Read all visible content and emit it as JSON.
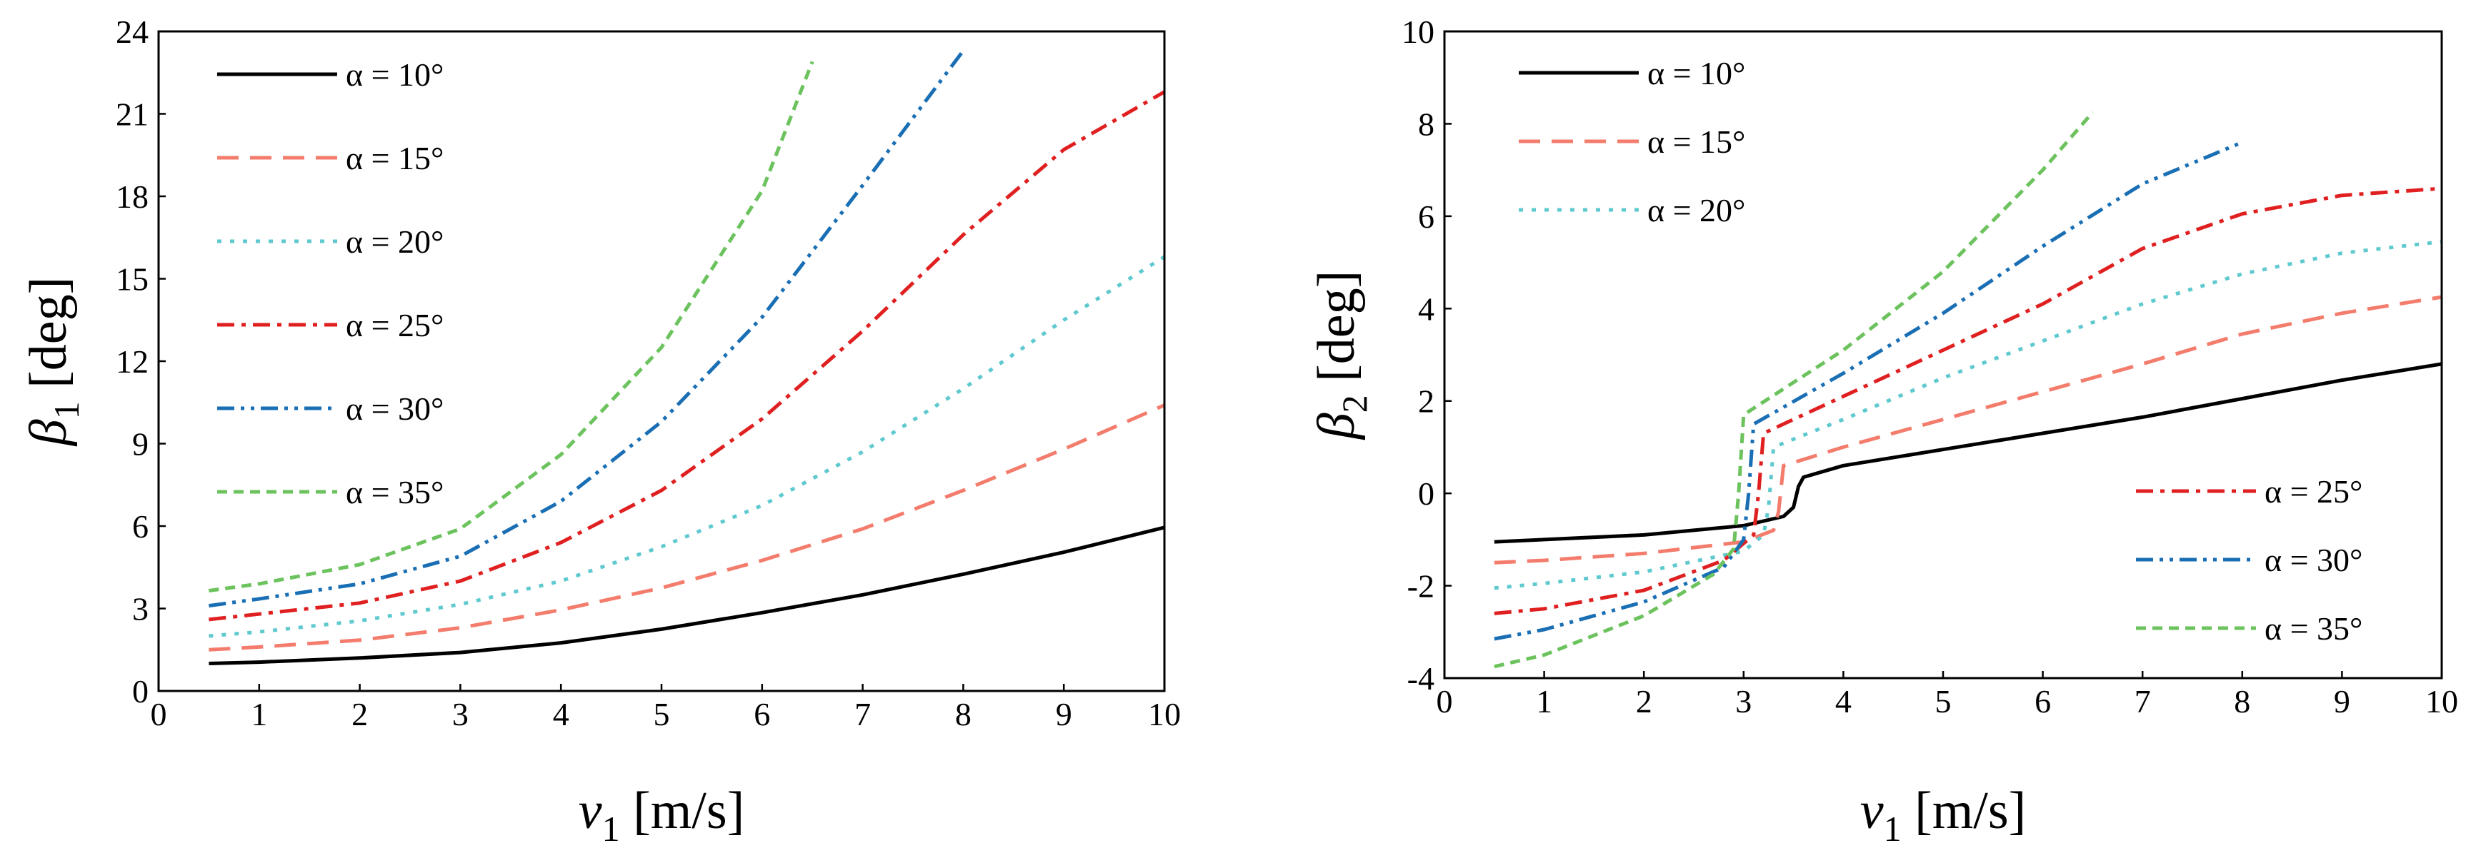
{
  "chart_data": [
    {
      "type": "line",
      "id": "left",
      "xlabel_var": "v",
      "xlabel_sub": "1",
      "xlabel_unit": " [m/s]",
      "ylabel_var": "β",
      "ylabel_sub": "1",
      "ylabel_unit": " [deg]",
      "xlim": [
        0,
        10
      ],
      "ylim": [
        0,
        24
      ],
      "xticks": [
        0,
        1,
        2,
        3,
        4,
        5,
        6,
        7,
        8,
        9,
        10
      ],
      "yticks": [
        0,
        3,
        6,
        9,
        12,
        15,
        18,
        21,
        24
      ],
      "legend_position": "top-left",
      "series": [
        {
          "name": "α = 10°",
          "color": "#000000",
          "style": "solid",
          "x": [
            0.5,
            1,
            2,
            3,
            4,
            5,
            6,
            7,
            8,
            9,
            10
          ],
          "y": [
            1.0,
            1.05,
            1.2,
            1.4,
            1.75,
            2.25,
            2.85,
            3.5,
            4.25,
            5.05,
            5.95
          ]
        },
        {
          "name": "α = 15°",
          "color": "#f47c6c",
          "style": "dash",
          "x": [
            0.5,
            1,
            2,
            3,
            4,
            5,
            6,
            7,
            8,
            9,
            10
          ],
          "y": [
            1.5,
            1.6,
            1.85,
            2.3,
            2.95,
            3.75,
            4.75,
            5.9,
            7.3,
            8.8,
            10.4
          ]
        },
        {
          "name": "α = 20°",
          "color": "#5ec9cf",
          "style": "dot",
          "x": [
            0.5,
            1,
            2,
            3,
            4,
            5,
            6,
            7,
            8,
            9,
            10
          ],
          "y": [
            2.0,
            2.15,
            2.55,
            3.15,
            4.0,
            5.25,
            6.75,
            8.7,
            11.0,
            13.5,
            15.8
          ]
        },
        {
          "name": "α = 25°",
          "color": "#e02020",
          "style": "dashdot",
          "x": [
            0.5,
            1,
            2,
            3,
            4,
            5,
            6,
            7,
            8,
            9,
            10
          ],
          "y": [
            2.6,
            2.8,
            3.2,
            4.0,
            5.4,
            7.3,
            9.9,
            13.1,
            16.6,
            19.7,
            21.8
          ]
        },
        {
          "name": "α = 30°",
          "color": "#1a6fb4",
          "style": "dashdotdot",
          "x": [
            0.5,
            1,
            2,
            3,
            4,
            5,
            6,
            7,
            8
          ],
          "y": [
            3.1,
            3.35,
            3.9,
            4.9,
            6.9,
            9.8,
            13.6,
            18.4,
            23.3
          ]
        },
        {
          "name": "α = 35°",
          "color": "#6cc35e",
          "style": "shortdash",
          "x": [
            0.5,
            1,
            2,
            3,
            4,
            5,
            6,
            6.5
          ],
          "y": [
            3.65,
            3.9,
            4.6,
            5.9,
            8.6,
            12.5,
            18.2,
            22.9
          ]
        }
      ]
    },
    {
      "type": "line",
      "id": "right",
      "xlabel_var": "v",
      "xlabel_sub": "1",
      "xlabel_unit": " [m/s]",
      "ylabel_var": "β",
      "ylabel_sub": "2",
      "ylabel_unit": " [deg]",
      "xlim": [
        0,
        10
      ],
      "ylim": [
        -4,
        10
      ],
      "xticks": [
        0,
        1,
        2,
        3,
        4,
        5,
        6,
        7,
        8,
        9,
        10
      ],
      "yticks": [
        -4,
        -2,
        0,
        2,
        4,
        6,
        8,
        10
      ],
      "legend_position": "top-left and bottom-right",
      "series": [
        {
          "name": "α = 10°",
          "color": "#000000",
          "style": "solid",
          "x": [
            0.5,
            1,
            2,
            3,
            3.4,
            3.5,
            3.55,
            3.6,
            4,
            5,
            6,
            7,
            8,
            9,
            10
          ],
          "y": [
            -1.05,
            -1.0,
            -0.9,
            -0.7,
            -0.5,
            -0.3,
            0.15,
            0.35,
            0.6,
            0.95,
            1.3,
            1.65,
            2.05,
            2.45,
            2.8
          ]
        },
        {
          "name": "α = 15°",
          "color": "#f47c6c",
          "style": "dash",
          "x": [
            0.5,
            1,
            2,
            3,
            3.3,
            3.35,
            3.4,
            4,
            5,
            6,
            7,
            8,
            9,
            10
          ],
          "y": [
            -1.5,
            -1.45,
            -1.3,
            -1.05,
            -0.8,
            -0.4,
            0.6,
            1.0,
            1.6,
            2.2,
            2.8,
            3.45,
            3.9,
            4.25
          ]
        },
        {
          "name": "α = 20°",
          "color": "#5ec9cf",
          "style": "dot",
          "x": [
            0.5,
            1,
            2,
            3,
            3.2,
            3.25,
            3.3,
            4,
            5,
            6,
            7,
            8,
            9,
            10
          ],
          "y": [
            -2.05,
            -1.95,
            -1.7,
            -1.25,
            -0.9,
            -0.3,
            1.0,
            1.6,
            2.5,
            3.3,
            4.1,
            4.75,
            5.2,
            5.45
          ]
        },
        {
          "name": "α = 25°",
          "color": "#e02020",
          "style": "dashdot",
          "x": [
            0.5,
            1,
            2,
            2.8,
            3.1,
            3.15,
            3.2,
            4,
            5,
            6,
            7,
            8,
            9,
            10
          ],
          "y": [
            -2.6,
            -2.5,
            -2.1,
            -1.45,
            -0.9,
            0.0,
            1.3,
            2.1,
            3.1,
            4.1,
            5.3,
            6.05,
            6.45,
            6.6
          ]
        },
        {
          "name": "α = 30°",
          "color": "#1a6fb4",
          "style": "dashdotdot",
          "x": [
            0.5,
            1,
            2,
            2.8,
            3.0,
            3.05,
            3.1,
            4,
            5,
            6,
            7,
            8
          ],
          "y": [
            -3.15,
            -2.95,
            -2.35,
            -1.6,
            -1.0,
            0.0,
            1.5,
            2.6,
            3.9,
            5.35,
            6.7,
            7.6
          ]
        },
        {
          "name": "α = 35°",
          "color": "#6cc35e",
          "style": "shortdash",
          "x": [
            0.5,
            1,
            2,
            2.7,
            2.9,
            2.95,
            3.0,
            4,
            5,
            6,
            6.5
          ],
          "y": [
            -3.75,
            -3.5,
            -2.65,
            -1.75,
            -1.2,
            0.0,
            1.7,
            3.1,
            4.8,
            7.0,
            8.25
          ]
        }
      ]
    }
  ]
}
